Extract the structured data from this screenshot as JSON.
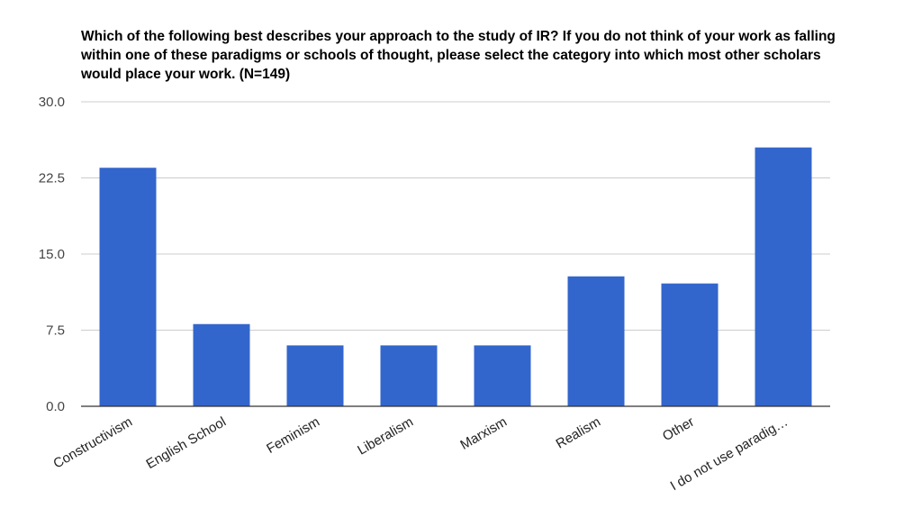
{
  "chart_data": {
    "type": "bar",
    "title": "Which of the following best describes your approach to the study of IR? If you do not think of your work as falling within one of these paradigms or schools of thought, please select the category into which most other scholars would place your work. (N=149)",
    "categories": [
      "Constructivism",
      "English School",
      "Feminism",
      "Liberalism",
      "Marxism",
      "Realism",
      "Other",
      "I do not use paradig…"
    ],
    "values": [
      23.5,
      8.1,
      6.0,
      6.0,
      6.0,
      12.8,
      12.1,
      25.5
    ],
    "ylim": [
      0,
      30
    ],
    "yticks": [
      "0.0",
      "7.5",
      "15.0",
      "22.5",
      "30.0"
    ],
    "grid": true,
    "xlabel": "",
    "ylabel": "",
    "bar_color": "#3366cc",
    "grid_color": "#cccccc",
    "axis_color": "#333333"
  }
}
